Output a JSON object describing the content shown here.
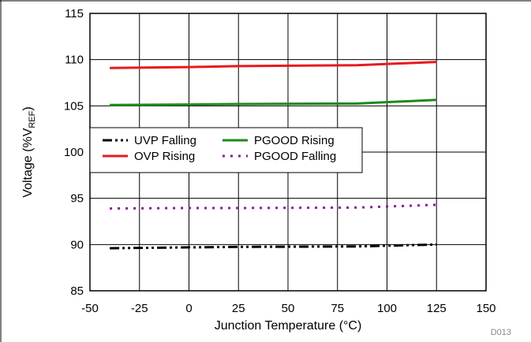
{
  "chart_data": {
    "type": "line",
    "xlabel": "Junction Temperature (°C)",
    "ylabel": {
      "main": "Voltage (%V",
      "sub": "REF",
      "tail": ")"
    },
    "xlim": [
      -50,
      150
    ],
    "ylim": [
      85,
      115
    ],
    "xticks": [
      -50,
      -25,
      0,
      25,
      50,
      75,
      100,
      125,
      150
    ],
    "yticks": [
      85,
      90,
      95,
      100,
      105,
      110,
      115
    ],
    "grid": true,
    "legend_position": "center-left",
    "figure_code": "D013",
    "series": [
      {
        "name": "UVP Falling",
        "color": "#000000",
        "style": "dash-dot-dot",
        "x": [
          -40,
          0,
          25,
          85,
          125
        ],
        "y": [
          89.6,
          89.7,
          89.75,
          89.8,
          90.0
        ]
      },
      {
        "name": "OVP Rising",
        "color": "#e8191e",
        "style": "solid",
        "x": [
          -40,
          0,
          25,
          85,
          125
        ],
        "y": [
          109.1,
          109.2,
          109.3,
          109.4,
          109.75
        ]
      },
      {
        "name": "PGOOD Rising",
        "color": "#1d8a1d",
        "style": "solid",
        "x": [
          -40,
          0,
          25,
          85,
          125
        ],
        "y": [
          105.1,
          105.15,
          105.2,
          105.25,
          105.65
        ]
      },
      {
        "name": "PGOOD Falling",
        "color": "#8b1a9a",
        "style": "dotted",
        "x": [
          -40,
          0,
          25,
          85,
          125
        ],
        "y": [
          93.9,
          93.95,
          93.95,
          94.0,
          94.3
        ]
      }
    ]
  }
}
